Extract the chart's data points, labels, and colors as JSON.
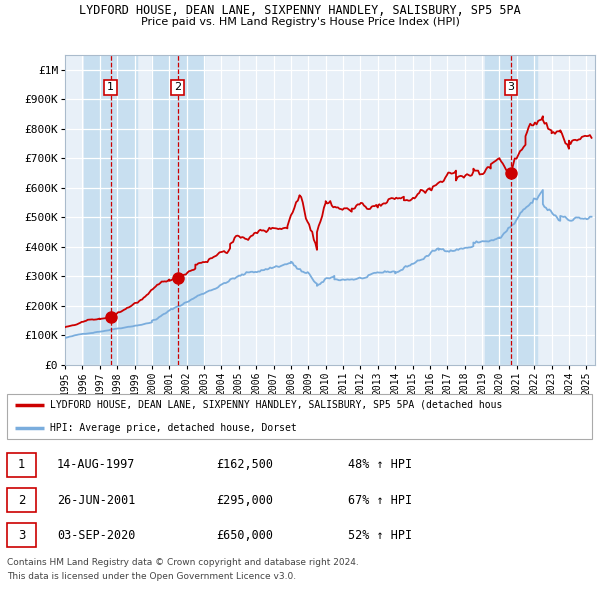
{
  "title_line1": "LYDFORD HOUSE, DEAN LANE, SIXPENNY HANDLEY, SALISBURY, SP5 5PA",
  "title_line2": "Price paid vs. HM Land Registry's House Price Index (HPI)",
  "ylim": [
    0,
    1050000
  ],
  "yticks": [
    0,
    100000,
    200000,
    300000,
    400000,
    500000,
    600000,
    700000,
    800000,
    900000,
    1000000
  ],
  "ytick_labels": [
    "£0",
    "£100K",
    "£200K",
    "£300K",
    "£400K",
    "£500K",
    "£600K",
    "£700K",
    "£800K",
    "£900K",
    "£1M"
  ],
  "xlim_start": 1995.0,
  "xlim_end": 2025.5,
  "xtick_years": [
    1995,
    1996,
    1997,
    1998,
    1999,
    2000,
    2001,
    2002,
    2003,
    2004,
    2005,
    2006,
    2007,
    2008,
    2009,
    2010,
    2011,
    2012,
    2013,
    2014,
    2015,
    2016,
    2017,
    2018,
    2019,
    2020,
    2021,
    2022,
    2023,
    2024,
    2025
  ],
  "house_color": "#cc0000",
  "hpi_color": "#7aaddd",
  "chart_bg": "#e8f0f8",
  "sale_band_color": "#c8dff0",
  "vline_color": "#cc0000",
  "sale_points": [
    {
      "year": 1997.622,
      "price": 162500,
      "label": "1"
    },
    {
      "year": 2001.486,
      "price": 295000,
      "label": "2"
    },
    {
      "year": 2020.672,
      "price": 650000,
      "label": "3"
    }
  ],
  "legend_house_label": "LYDFORD HOUSE, DEAN LANE, SIXPENNY HANDLEY, SALISBURY, SP5 5PA (detached hous",
  "legend_hpi_label": "HPI: Average price, detached house, Dorset",
  "table_rows": [
    {
      "num": "1",
      "date": "14-AUG-1997",
      "price": "£162,500",
      "change": "48% ↑ HPI"
    },
    {
      "num": "2",
      "date": "26-JUN-2001",
      "price": "£295,000",
      "change": "67% ↑ HPI"
    },
    {
      "num": "3",
      "date": "03-SEP-2020",
      "price": "£650,000",
      "change": "52% ↑ HPI"
    }
  ],
  "footer_line1": "Contains HM Land Registry data © Crown copyright and database right 2024.",
  "footer_line2": "This data is licensed under the Open Government Licence v3.0."
}
